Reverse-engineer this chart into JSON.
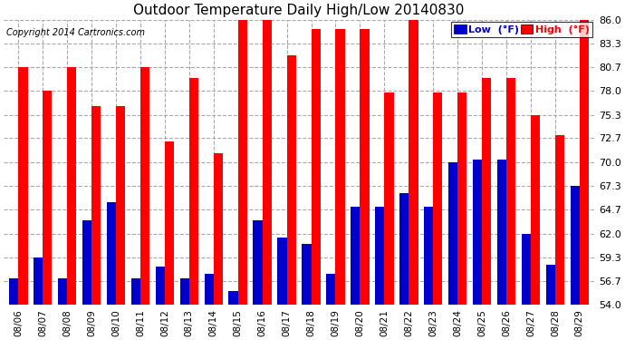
{
  "title": "Outdoor Temperature Daily High/Low 20140830",
  "copyright": "Copyright 2014 Cartronics.com",
  "legend_low": "Low  (°F)",
  "legend_high": "High  (°F)",
  "dates": [
    "08/06",
    "08/07",
    "08/08",
    "08/09",
    "08/10",
    "08/11",
    "08/12",
    "08/13",
    "08/14",
    "08/15",
    "08/16",
    "08/17",
    "08/18",
    "08/19",
    "08/20",
    "08/21",
    "08/22",
    "08/23",
    "08/24",
    "08/25",
    "08/26",
    "08/27",
    "08/28",
    "08/29"
  ],
  "highs": [
    80.7,
    78.0,
    80.7,
    76.3,
    76.3,
    80.7,
    72.3,
    79.5,
    71.0,
    86.0,
    86.0,
    82.0,
    85.0,
    85.0,
    85.0,
    77.8,
    86.0,
    77.8,
    77.8,
    79.5,
    79.5,
    75.3,
    73.0,
    86.0
  ],
  "lows": [
    57.0,
    59.3,
    57.0,
    63.5,
    65.5,
    57.0,
    58.3,
    57.0,
    57.5,
    55.5,
    63.5,
    61.5,
    60.8,
    57.5,
    65.0,
    65.0,
    66.5,
    65.0,
    70.0,
    70.3,
    70.3,
    62.0,
    58.5,
    67.3
  ],
  "ymin": 54.0,
  "ymax": 86.0,
  "yticks": [
    54.0,
    56.7,
    59.3,
    62.0,
    64.7,
    67.3,
    70.0,
    72.7,
    75.3,
    78.0,
    80.7,
    83.3,
    86.0
  ],
  "bg_color": "#ffffff",
  "grid_color": "#aaaaaa",
  "bar_color_high": "#ff0000",
  "bar_color_low": "#0000cc",
  "bar_width": 0.38,
  "title_fontsize": 11,
  "copyright_fontsize": 7,
  "tick_fontsize": 8,
  "legend_fontsize": 8
}
